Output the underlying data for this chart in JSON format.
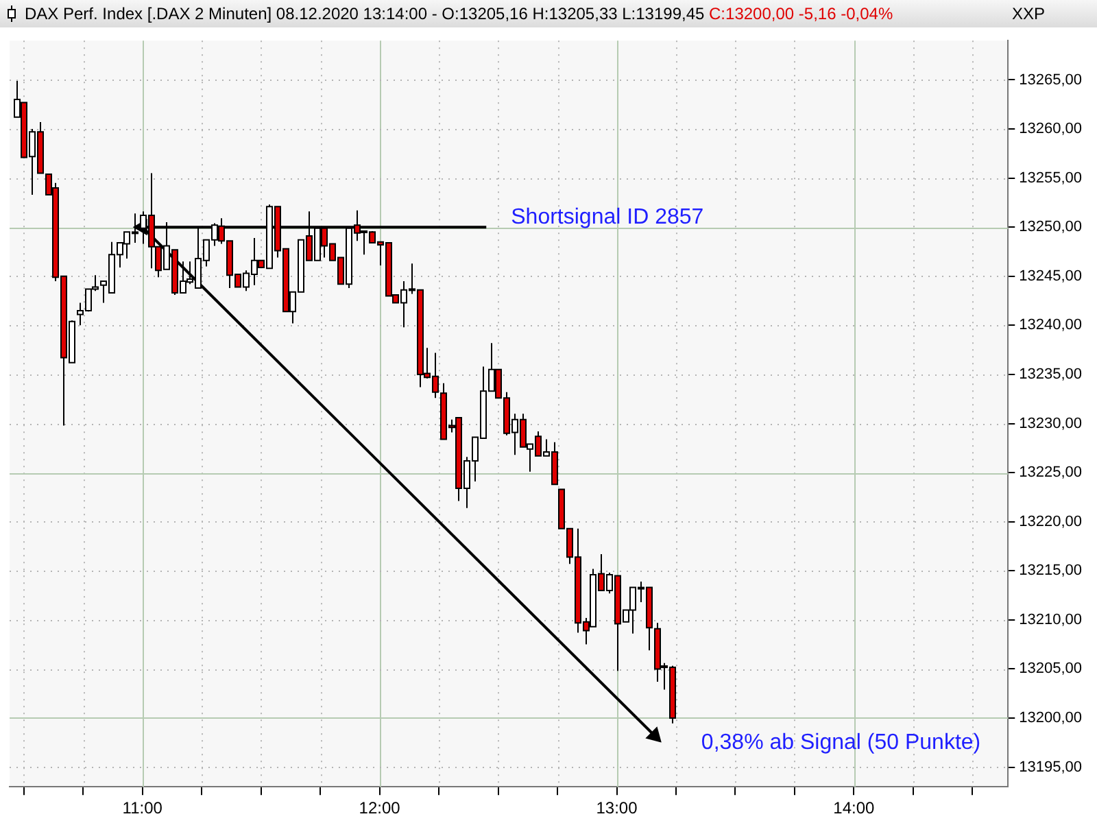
{
  "chart_data": {
    "type": "candlestick",
    "title": "DAX Perf. Index [.DAX  2 Minuten] 08.12.2020 13:14:00 - O:13205,16 H:13205,33 L:13199,45",
    "subtitle": "C:13200,00 -5,16 -0,04%",
    "annotations": [
      "XXP",
      "Shortsignal ID 2857",
      "0,38% ab Signal (50 Punkte)"
    ],
    "x": [
      10.4667,
      10.5,
      10.5333,
      10.5667,
      10.6,
      10.6333,
      10.6667,
      10.7,
      10.7333,
      10.7667,
      10.8,
      10.8333,
      10.8667,
      10.9,
      10.9333,
      10.9667,
      11.0,
      11.0333,
      11.0667,
      11.1,
      11.1333,
      11.1667,
      11.2,
      11.2333,
      11.2667,
      11.3,
      11.3333,
      11.3667,
      11.4,
      11.4333,
      11.4667,
      11.5,
      11.5333,
      11.5667,
      11.6,
      11.6333,
      11.6667,
      11.7,
      11.7333,
      11.7667,
      11.8,
      11.8333,
      11.8667,
      11.9,
      11.9333,
      11.9667,
      12.0,
      12.0333,
      12.0667,
      12.1,
      12.1333,
      12.1667,
      12.2,
      12.2333,
      12.2667,
      12.3,
      12.3333,
      12.3667,
      12.4,
      12.4333,
      12.4667,
      12.5,
      12.5333,
      12.5667,
      12.6,
      12.6333,
      12.6667,
      12.7,
      12.7333,
      12.7667,
      12.8,
      12.8333,
      12.8667,
      12.9,
      12.9333,
      12.9667,
      13.0,
      13.0333,
      13.0667,
      13.1,
      13.1333,
      13.1667,
      13.2,
      13.2333
    ],
    "ohlc": [
      [
        13261.2,
        13264.9,
        13261.2,
        13263.0
      ],
      [
        13262.7,
        13262.7,
        13257.1,
        13257.1
      ],
      [
        13257.2,
        13260.0,
        13253.3,
        13259.7
      ],
      [
        13259.7,
        13260.7,
        13255.5,
        13255.5
      ],
      [
        13255.4,
        13255.4,
        13253.3,
        13253.3
      ],
      [
        13254.0,
        13254.5,
        13244.5,
        13244.9
      ],
      [
        13245.0,
        13245.0,
        13229.8,
        13236.7
      ],
      [
        13236.2,
        13240.5,
        13236.2,
        13240.4
      ],
      [
        13241.1,
        13242.3,
        13240.0,
        13241.5
      ],
      [
        13241.5,
        13243.7,
        13241.4,
        13243.7
      ],
      [
        13243.7,
        13245.1,
        13243.5,
        13243.9
      ],
      [
        13244.1,
        13244.5,
        13242.3,
        13244.5
      ],
      [
        13243.3,
        13248.5,
        13243.3,
        13247.2
      ],
      [
        13247.2,
        13248.4,
        13245.9,
        13248.4
      ],
      [
        13248.3,
        13249.5,
        13246.8,
        13249.5
      ],
      [
        13249.4,
        13251.4,
        13248.4,
        13249.5
      ],
      [
        13249.9,
        13251.6,
        13248.3,
        13251.2
      ],
      [
        13251.2,
        13255.5,
        13245.8,
        13248.0
      ],
      [
        13248.0,
        13248.0,
        13244.9,
        13245.6
      ],
      [
        13245.7,
        13250.5,
        13245.7,
        13248.1
      ],
      [
        13247.7,
        13247.7,
        13243.1,
        13243.3
      ],
      [
        13243.3,
        13246.5,
        13243.3,
        13244.5
      ],
      [
        13244.4,
        13246.5,
        13244.2,
        13244.7
      ],
      [
        13243.8,
        13250.0,
        13243.8,
        13246.8
      ],
      [
        13246.6,
        13248.7,
        13246.0,
        13248.7
      ],
      [
        13248.7,
        13250.4,
        13248.1,
        13250.2
      ],
      [
        13250.1,
        13250.9,
        13248.3,
        13248.6
      ],
      [
        13248.6,
        13248.6,
        13243.8,
        13245.1
      ],
      [
        13245.2,
        13245.2,
        13243.9,
        13243.9
      ],
      [
        13243.9,
        13245.6,
        13243.5,
        13245.3
      ],
      [
        13245.2,
        13248.9,
        13244.1,
        13246.6
      ],
      [
        13246.6,
        13246.6,
        13245.9,
        13245.9
      ],
      [
        13245.8,
        13252.3,
        13245.8,
        13252.1
      ],
      [
        13252.1,
        13252.1,
        13246.9,
        13247.6
      ],
      [
        13247.8,
        13247.8,
        13241.4,
        13241.4
      ],
      [
        13241.4,
        13243.4,
        13240.2,
        13243.4
      ],
      [
        13243.4,
        13248.7,
        13243.4,
        13248.7
      ],
      [
        13249.1,
        13251.6,
        13246.6,
        13246.6
      ],
      [
        13246.6,
        13249.9,
        13246.6,
        13249.9
      ],
      [
        13249.9,
        13249.9,
        13246.9,
        13248.1
      ],
      [
        13248.3,
        13248.3,
        13246.6,
        13246.6
      ],
      [
        13246.9,
        13246.9,
        13244.2,
        13244.2
      ],
      [
        13244.2,
        13249.9,
        13243.8,
        13249.9
      ],
      [
        13250.2,
        13251.7,
        13248.6,
        13249.4
      ],
      [
        13249.6,
        13249.6,
        13247.2,
        13249.5
      ],
      [
        13249.5,
        13249.6,
        13248.4,
        13248.4
      ],
      [
        13248.5,
        13248.5,
        13246.1,
        13248.2
      ],
      [
        13248.4,
        13248.4,
        13243.0,
        13243.0
      ],
      [
        13243.1,
        13243.1,
        13242.3,
        13242.3
      ],
      [
        13242.3,
        13244.5,
        13239.8,
        13243.6
      ],
      [
        13243.7,
        13246.3,
        13243.2,
        13243.6
      ],
      [
        13243.6,
        13243.6,
        13233.7,
        13235.0
      ],
      [
        13235.1,
        13237.7,
        13234.6,
        13234.7
      ],
      [
        13234.8,
        13237.2,
        13232.6,
        13233.2
      ],
      [
        13233.1,
        13234.1,
        13228.4,
        13228.4
      ],
      [
        13229.8,
        13230.4,
        13229.1,
        13229.6
      ],
      [
        13230.6,
        13230.6,
        13222.1,
        13223.4
      ],
      [
        13223.4,
        13226.6,
        13221.4,
        13226.2
      ],
      [
        13226.2,
        13228.6,
        13224.1,
        13228.6
      ],
      [
        13228.5,
        13235.8,
        13228.5,
        13233.3
      ],
      [
        13233.3,
        13238.2,
        13233.3,
        13235.5
      ],
      [
        13235.5,
        13235.5,
        13232.6,
        13232.6
      ],
      [
        13232.6,
        13233.2,
        13228.8,
        13229.0
      ],
      [
        13229.1,
        13231.0,
        13226.8,
        13230.4
      ],
      [
        13230.4,
        13231.0,
        13227.6,
        13227.6
      ],
      [
        13227.4,
        13227.9,
        13225.1,
        13227.9
      ],
      [
        13228.7,
        13229.2,
        13226.7,
        13226.7
      ],
      [
        13226.7,
        13228.4,
        13226.7,
        13227.1
      ],
      [
        13227.1,
        13228.1,
        13223.8,
        13223.8
      ],
      [
        13223.3,
        13223.3,
        13219.3,
        13219.3
      ],
      [
        13219.3,
        13219.3,
        13215.7,
        13216.4
      ],
      [
        13216.4,
        13219.3,
        13208.7,
        13209.7
      ],
      [
        13209.8,
        13210.2,
        13207.5,
        13208.9
      ],
      [
        13209.3,
        13215.2,
        13209.3,
        13214.6
      ],
      [
        13214.7,
        13216.7,
        13213.0,
        13213.0
      ],
      [
        13213.0,
        13214.8,
        13212.7,
        13214.6
      ],
      [
        13214.5,
        13214.5,
        13204.8,
        13209.6
      ],
      [
        13209.8,
        13211.0,
        13209.8,
        13211.0
      ],
      [
        13211.0,
        13213.3,
        13208.6,
        13213.3
      ],
      [
        13213.2,
        13213.9,
        13211.8,
        13213.3
      ],
      [
        13213.3,
        13213.3,
        13206.9,
        13209.2
      ],
      [
        13209.1,
        13209.7,
        13203.7,
        13205.0
      ],
      [
        13205.3,
        13205.6,
        13202.9,
        13205.2
      ],
      [
        13205.16,
        13205.33,
        13199.45,
        13200.0
      ]
    ],
    "series": [
      {
        "type": "line",
        "color": "#000000",
        "x": [
          12.45,
          11.0
        ],
        "values": [
          13250,
          13250
        ]
      },
      {
        "type": "line",
        "color": "#000000",
        "x": [
          11.0,
          13.16
        ],
        "values": [
          13250,
          13198.2
        ]
      }
    ],
    "xlim": [
      10.44,
      14.65
    ],
    "xticks": [
      {
        "value": 10.5,
        "label": null
      },
      {
        "value": 10.75,
        "label": null
      },
      {
        "value": 11,
        "label": "11:00"
      },
      {
        "value": 11.25,
        "label": null
      },
      {
        "value": 11.5,
        "label": null
      },
      {
        "value": 11.75,
        "label": null
      },
      {
        "value": 12,
        "label": "12:00"
      },
      {
        "value": 12.25,
        "label": null
      },
      {
        "value": 12.5,
        "label": null
      },
      {
        "value": 12.75,
        "label": null
      },
      {
        "value": 13,
        "label": "13:00"
      },
      {
        "value": 13.25,
        "label": null
      },
      {
        "value": 13.5,
        "label": null
      },
      {
        "value": 13.75,
        "label": null
      },
      {
        "value": 14,
        "label": "14:00"
      },
      {
        "value": 14.25,
        "label": null
      },
      {
        "value": 14.5,
        "label": null
      }
    ],
    "ylim": [
      13193,
      13269
    ],
    "yticks": [
      {
        "value": 13195,
        "label": "13195,00"
      },
      {
        "value": 13200,
        "label": "13200,00"
      },
      {
        "value": 13205,
        "label": "13205,00"
      },
      {
        "value": 13210,
        "label": "13210,00"
      },
      {
        "value": 13215,
        "label": "13215,00"
      },
      {
        "value": 13220,
        "label": "13220,00"
      },
      {
        "value": 13225,
        "label": "13225,00"
      },
      {
        "value": 13230,
        "label": "13230,00"
      },
      {
        "value": 13235,
        "label": "13235,00"
      },
      {
        "value": 13240,
        "label": "13240,00"
      },
      {
        "value": 13245,
        "label": "13245,00"
      },
      {
        "value": 13250,
        "label": "13250,00"
      },
      {
        "value": 13255,
        "label": "13255,00"
      },
      {
        "value": 13260,
        "label": "13260,00"
      },
      {
        "value": 13265,
        "label": "13265,00"
      }
    ],
    "grid": true
  }
}
